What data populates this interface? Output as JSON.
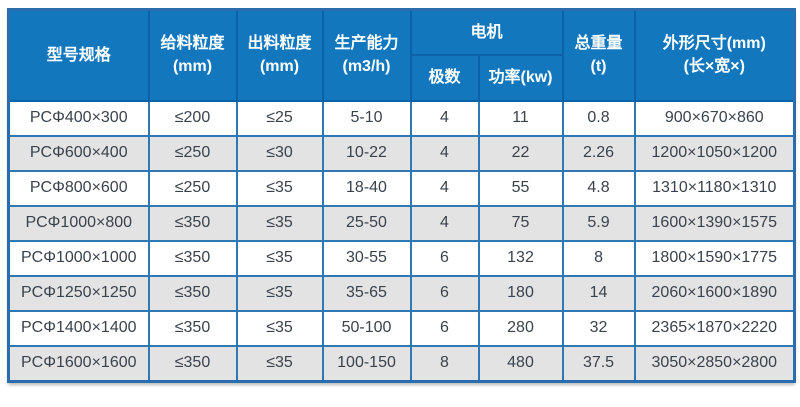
{
  "chart_data": {
    "type": "table",
    "header": {
      "model": "型号规格",
      "feed_size_line1": "给料粒度",
      "feed_size_line2": "(mm)",
      "discharge_size_line1": "出料粒度",
      "discharge_size_line2": "(mm)",
      "capacity_line1": "生产能力",
      "capacity_line2": "(m3/h)",
      "motor_group": "电机",
      "motor_poles": "极数",
      "motor_power": "功率(kw)",
      "total_weight_line1": "总重量",
      "total_weight_line2": "(t)",
      "dimensions_line1": "外形尺寸(mm)",
      "dimensions_line2": "(长×宽×)"
    },
    "columns": [
      "型号规格",
      "给料粒度(mm)",
      "出料粒度(mm)",
      "生产能力(m3/h)",
      "电机-极数",
      "电机-功率(kw)",
      "总重量(t)",
      "外形尺寸(mm)(长×宽×)"
    ],
    "rows": [
      {
        "model": "PCΦ400×300",
        "feed_size": "≤200",
        "discharge_size": "≤25",
        "capacity": "5-10",
        "poles": "4",
        "power": "11",
        "weight": "0.8",
        "dimensions": "900×670×860"
      },
      {
        "model": "PCΦ600×400",
        "feed_size": "≤250",
        "discharge_size": "≤30",
        "capacity": "10-22",
        "poles": "4",
        "power": "22",
        "weight": "2.26",
        "dimensions": "1200×1050×1200"
      },
      {
        "model": "PCΦ800×600",
        "feed_size": "≤250",
        "discharge_size": "≤35",
        "capacity": "18-40",
        "poles": "4",
        "power": "55",
        "weight": "4.8",
        "dimensions": "1310×1180×1310"
      },
      {
        "model": "PCΦ1000×800",
        "feed_size": "≤350",
        "discharge_size": "≤35",
        "capacity": "25-50",
        "poles": "4",
        "power": "75",
        "weight": "5.9",
        "dimensions": "1600×1390×1575"
      },
      {
        "model": "PCΦ1000×1000",
        "feed_size": "≤350",
        "discharge_size": "≤35",
        "capacity": "30-55",
        "poles": "6",
        "power": "132",
        "weight": "8",
        "dimensions": "1800×1590×1775"
      },
      {
        "model": "PCΦ1250×1250",
        "feed_size": "≤350",
        "discharge_size": "≤35",
        "capacity": "35-65",
        "poles": "6",
        "power": "180",
        "weight": "14",
        "dimensions": "2060×1600×1890"
      },
      {
        "model": "PCΦ1400×1400",
        "feed_size": "≤350",
        "discharge_size": "≤35",
        "capacity": "50-100",
        "poles": "6",
        "power": "280",
        "weight": "32",
        "dimensions": "2365×1870×2220"
      },
      {
        "model": "PCΦ1600×1600",
        "feed_size": "≤350",
        "discharge_size": "≤35",
        "capacity": "100-150",
        "poles": "8",
        "power": "480",
        "weight": "37.5",
        "dimensions": "3050×2850×2800"
      }
    ]
  },
  "colors": {
    "header_bg": "#1377be",
    "header_text": "#ffffff",
    "header_divider": "#0d61a8",
    "outer_border": "#2a6dad",
    "grid_border": "#3078b4",
    "row_bg": "#ffffff",
    "row_alt_bg": "#e3e3e3",
    "body_text": "#3a424c"
  }
}
